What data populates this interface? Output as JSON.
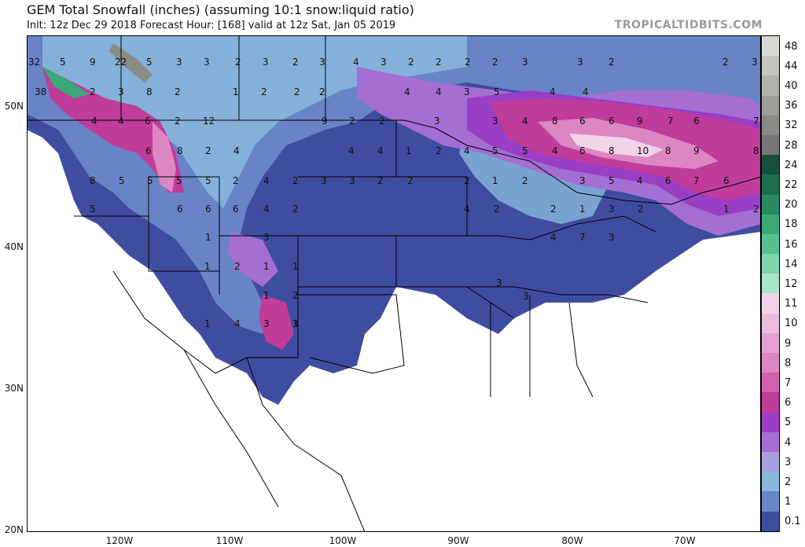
{
  "title": "GEM Total Snowfall (inches) (assuming 10:1 snow:liquid ratio)",
  "subtitle": "Init: 12z Dec 29 2018   Forecast Hour: [168]   valid at 12z Sat, Jan 05 2019",
  "brand": "TROPICALTIDBITS.COM",
  "lat_labels": [
    "50N",
    "40N",
    "30N",
    "20N"
  ],
  "lon_labels": [
    "120W",
    "110W",
    "100W",
    "90W",
    "80W",
    "70W"
  ],
  "colorbar": [
    {
      "label": "48",
      "color": "#d8d8d0"
    },
    {
      "label": "44",
      "color": "#c6c6be"
    },
    {
      "label": "40",
      "color": "#b2b2aa"
    },
    {
      "label": "36",
      "color": "#9e9e98"
    },
    {
      "label": "32",
      "color": "#8a8a86"
    },
    {
      "label": "28",
      "color": "#767676"
    },
    {
      "label": "24",
      "color": "#16503a"
    },
    {
      "label": "22",
      "color": "#1e6e4e"
    },
    {
      "label": "20",
      "color": "#2a8a62"
    },
    {
      "label": "18",
      "color": "#3aa878"
    },
    {
      "label": "16",
      "color": "#58c090"
    },
    {
      "label": "14",
      "color": "#7cd6aa"
    },
    {
      "label": "12",
      "color": "#a8e8c8"
    },
    {
      "label": "11",
      "color": "#f2d4ea"
    },
    {
      "label": "10",
      "color": "#ecbcde"
    },
    {
      "label": "9",
      "color": "#e4a2d2"
    },
    {
      "label": "8",
      "color": "#dc86c2"
    },
    {
      "label": "7",
      "color": "#d062ae"
    },
    {
      "label": "6",
      "color": "#c03c9a"
    },
    {
      "label": "5",
      "color": "#9a3ec6"
    },
    {
      "label": "4",
      "color": "#a46ed2"
    },
    {
      "label": "3",
      "color": "#a8a0dc"
    },
    {
      "label": "2",
      "color": "#8ab8dc"
    },
    {
      "label": "1",
      "color": "#6a86c8"
    },
    {
      "label": "0.1",
      "color": "#3f4da0"
    }
  ],
  "map_labels": [
    "32",
    "5",
    "9",
    "22",
    "5",
    "3",
    "3",
    "2",
    "3",
    "2",
    "3",
    "4",
    "3",
    "2",
    "2",
    "2",
    "2",
    "3",
    "3",
    "2",
    "2",
    "3",
    "38",
    "2",
    "3",
    "8",
    "2",
    "1",
    "2",
    "2",
    "2",
    "4",
    "4",
    "3",
    "5",
    "4",
    "4",
    "4",
    "4",
    "6",
    "2",
    "12",
    "9",
    "2",
    "2",
    "3",
    "3",
    "4",
    "8",
    "6",
    "6",
    "9",
    "7",
    "6",
    "7",
    "6",
    "8",
    "2",
    "4",
    "4",
    "4",
    "1",
    "2",
    "4",
    "5",
    "5",
    "4",
    "6",
    "8",
    "10",
    "8",
    "9",
    "8",
    "8",
    "5",
    "5",
    "5",
    "5",
    "2",
    "4",
    "2",
    "3",
    "3",
    "2",
    "2",
    "2",
    "1",
    "2",
    "3",
    "5",
    "4",
    "6",
    "7",
    "6",
    "5",
    "6",
    "6",
    "6",
    "4",
    "2",
    "4",
    "2",
    "2",
    "1",
    "3",
    "2",
    "1",
    "2",
    "1",
    "3",
    "4",
    "7",
    "3",
    "3",
    "1",
    "2",
    "1",
    "1",
    "3",
    "1",
    "2",
    "3",
    "1",
    "4",
    "3",
    "1",
    "2",
    "5",
    "3",
    "3"
  ]
}
